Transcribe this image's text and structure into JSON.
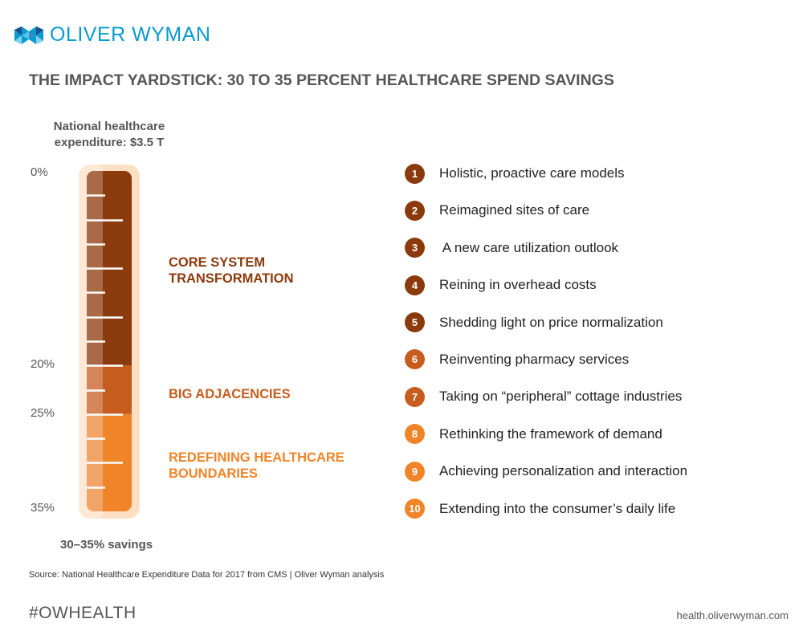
{
  "brand": {
    "name": "OLIVER WYMAN",
    "logo_icon": "oliver-wyman-logo-icon",
    "color": "#0a9bd0"
  },
  "title": "THE IMPACT YARDSTICK: 30 TO 35 PERCENT HEALTHCARE SPEND SAVINGS",
  "chart_data": {
    "type": "bar",
    "subtype": "stacked-thermometer",
    "title": "National healthcare expenditure: $3.5 T",
    "total_label": "National healthcare expenditure: $3.5 T",
    "xlabel": "30–35% savings",
    "ylabel": "",
    "ylim": [
      0,
      35
    ],
    "y_tick_labels": [
      "0%",
      "20%",
      "25%",
      "35%"
    ],
    "y_ticks": [
      0,
      20,
      25,
      35
    ],
    "segments": [
      {
        "name": "CORE SYSTEM TRANSFORMATION",
        "start": 0,
        "end": 20,
        "color": "#8a3a0c",
        "light_color": "#a96a4a"
      },
      {
        "name": "BIG ADJACENCIES",
        "start": 20,
        "end": 25,
        "color": "#c65c1e",
        "light_color": "#d4865a"
      },
      {
        "name": "REDEFINING HEALTHCARE BOUNDARIES",
        "start": 25,
        "end": 35,
        "color": "#f08428",
        "light_color": "#f2a468"
      }
    ],
    "minor_tick_count": 13,
    "grid": false,
    "legend": "right"
  },
  "labels": {
    "nhe_line1": "National healthcare",
    "nhe_line2": "expenditure: $3.5 T",
    "pct_0": "0%",
    "pct_20": "20%",
    "pct_25": "25%",
    "pct_35": "35%",
    "savings": "30–35% savings",
    "tier1_line1": "CORE SYSTEM",
    "tier1_line2": "TRANSFORMATION",
    "tier2": "BIG ADJACENCIES",
    "tier3_line1": "REDEFINING HEALTHCARE",
    "tier3_line2": "BOUNDARIES"
  },
  "tier_colors": {
    "tier1": "#8a3a0c",
    "tier2": "#c65c1e",
    "tier3": "#f08428"
  },
  "list": [
    {
      "num": "1",
      "text": "Holistic, proactive care models",
      "color": "#8a3a0c"
    },
    {
      "num": "2",
      "text": "Reimagined sites of care",
      "color": "#8a3a0c"
    },
    {
      "num": "3",
      "text": " A new care utilization outlook",
      "color": "#8a3a0c"
    },
    {
      "num": "4",
      "text": "Reining in overhead costs",
      "color": "#8a3a0c"
    },
    {
      "num": "5",
      "text": "Shedding light on price normalization",
      "color": "#8a3a0c"
    },
    {
      "num": "6",
      "text": "Reinventing pharmacy services",
      "color": "#c65c1e"
    },
    {
      "num": "7",
      "text": "Taking on “peripheral” cottage industries",
      "color": "#c65c1e"
    },
    {
      "num": "8",
      "text": "Rethinking the framework of demand",
      "color": "#f08428"
    },
    {
      "num": "9",
      "text": "Achieving personalization and interaction",
      "color": "#f08428"
    },
    {
      "num": "10",
      "text": "Extending into the consumer’s daily life",
      "color": "#f08428"
    }
  ],
  "footer": {
    "source": "Source: National Healthcare Expenditure Data for 2017 from CMS | Oliver Wyman analysis",
    "hashtag": "#OWHEALTH",
    "website": "health.oliverwyman.com"
  }
}
